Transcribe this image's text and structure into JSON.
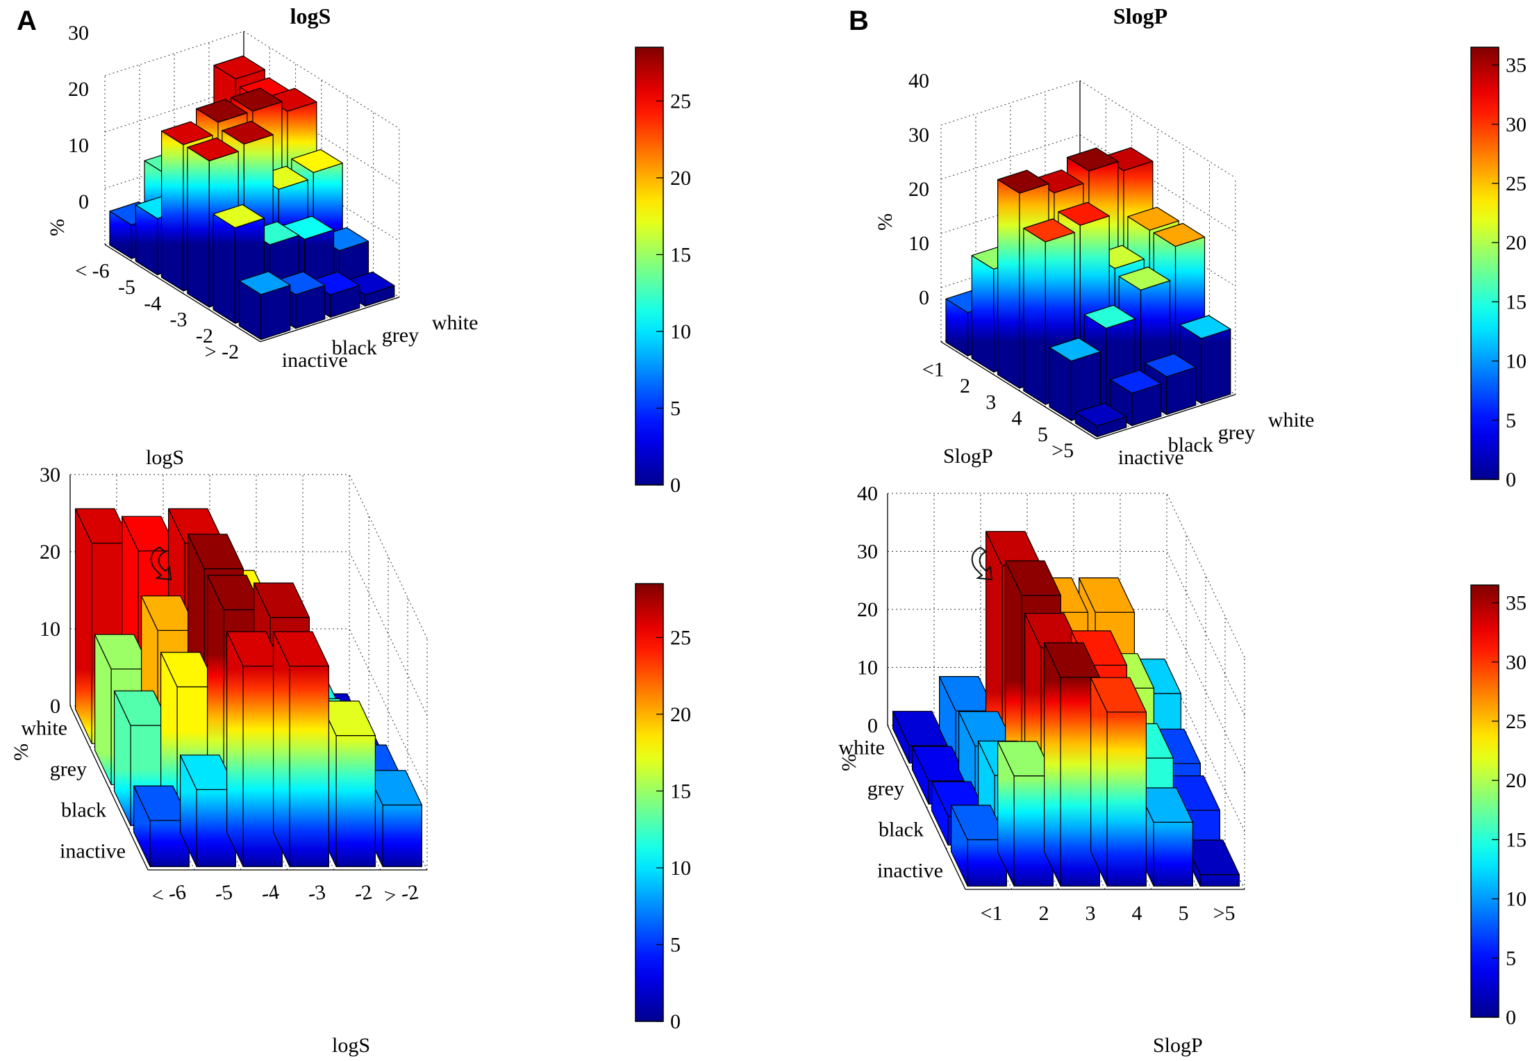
{
  "panels": [
    {
      "letter": "A",
      "title": "logS",
      "axis_label": "logS",
      "y_label": "%",
      "status_labels": [
        "inactive",
        "black",
        "grey",
        "white"
      ],
      "bin_labels": [
        "< -6",
        "-5",
        "-4",
        "-3",
        "-2",
        "> -2"
      ],
      "y_ticks": [
        "0",
        "10",
        "20",
        "30"
      ],
      "colorbar_ticks": [
        "0",
        "5",
        "10",
        "15",
        "20",
        "25"
      ],
      "color_max": 28.5,
      "rotate_icon": "rotate-arrow-icon"
    },
    {
      "letter": "B",
      "title": "SlogP",
      "axis_label": "SlogP",
      "y_label": "%",
      "status_labels": [
        "inactive",
        "black",
        "grey",
        "white"
      ],
      "bin_labels": [
        "<1",
        "2",
        "3",
        "4",
        "5",
        ">5"
      ],
      "y_ticks": [
        "0",
        "10",
        "20",
        "30",
        "40"
      ],
      "colorbar_ticks": [
        "0",
        "5",
        "10",
        "15",
        "20",
        "25",
        "30",
        "35"
      ],
      "color_max": 36.5,
      "rotate_icon": "rotate-arrow-icon"
    }
  ],
  "chart_data": [
    {
      "type": "bar3d",
      "title": "logS",
      "xlabel": "logS",
      "ylabel": "%",
      "categories": [
        "< -6",
        "-5",
        "-4",
        "-3",
        "-2",
        "> -2"
      ],
      "series": [
        {
          "name": "inactive",
          "values": [
            6,
            10,
            26,
            26,
            17,
            8
          ]
        },
        {
          "name": "black",
          "values": [
            13,
            18,
            28,
            27,
            12,
            6
          ]
        },
        {
          "name": "grey",
          "values": [
            15,
            20,
            28,
            17,
            11,
            4
          ]
        },
        {
          "name": "white",
          "values": [
            26,
            25,
            26,
            18,
            7,
            2
          ]
        }
      ],
      "zlim": [
        0,
        30
      ],
      "colorbar": [
        0,
        28.5
      ]
    },
    {
      "type": "bar3d",
      "title": "SlogP",
      "xlabel": "SlogP",
      "ylabel": "%",
      "categories": [
        "<1",
        "2",
        "3",
        "4",
        "5",
        ">5"
      ],
      "series": [
        {
          "name": "inactive",
          "values": [
            8,
            19,
            36,
            30,
            11,
            2
          ]
        },
        {
          "name": "black",
          "values": [
            5,
            12,
            34,
            31,
            15,
            6
          ]
        },
        {
          "name": "grey",
          "values": [
            4,
            10,
            36,
            21,
            20,
            7
          ]
        },
        {
          "name": "white",
          "values": [
            3,
            9,
            34,
            26,
            26,
            12
          ]
        }
      ],
      "zlim": [
        0,
        40
      ],
      "colorbar": [
        0,
        36.5
      ]
    }
  ]
}
